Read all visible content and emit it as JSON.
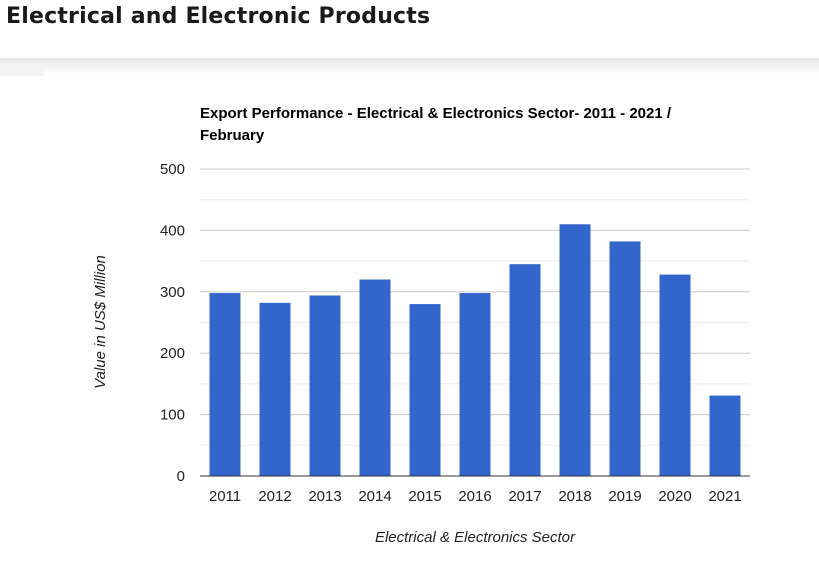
{
  "page": {
    "title": "Electrical and Electronic Products"
  },
  "chart_data": {
    "type": "bar",
    "title_lines": [
      "Export Performance - Electrical & Electronics Sector- 2011 - 2021 /",
      "February"
    ],
    "xlabel": "Electrical & Electronics Sector",
    "ylabel": "Value in US$ Million",
    "categories": [
      "2011",
      "2012",
      "2013",
      "2014",
      "2015",
      "2016",
      "2017",
      "2018",
      "2019",
      "2020",
      "2021"
    ],
    "series": [
      {
        "values": [
          298,
          282,
          294,
          320,
          280,
          298,
          345,
          410,
          382,
          328,
          131
        ]
      }
    ],
    "ylim": [
      0,
      500
    ],
    "yticks": [
      "0",
      "100",
      "200",
      "300",
      "400",
      "500"
    ],
    "bar_color": "#3366cc",
    "gridlines": true,
    "legend": "none"
  }
}
